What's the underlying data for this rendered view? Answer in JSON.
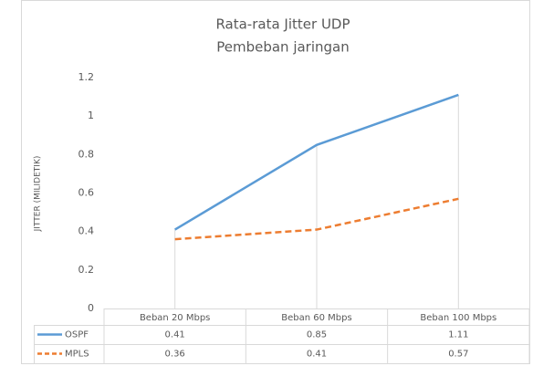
{
  "chart_data": {
    "type": "line",
    "title": "Rata-rata Jitter UDP",
    "subtitle": "Pembeban jaringan",
    "ylabel": "JITTER (MILIDETIK)",
    "categories": [
      "Beban 20 Mbps",
      "Beban 60 Mbps",
      "Beban 100 Mbps"
    ],
    "series": [
      {
        "name": "OSPF",
        "color": "#5b9bd5",
        "dashed": false,
        "values": [
          0.41,
          0.85,
          1.11
        ]
      },
      {
        "name": "MPLS",
        "color": "#ed7d31",
        "dashed": true,
        "values": [
          0.36,
          0.41,
          0.57
        ]
      }
    ],
    "ylim": [
      0,
      1.2
    ],
    "yticks": [
      0,
      0.2,
      0.4,
      0.6,
      0.8,
      1,
      1.2
    ],
    "data_table": true
  }
}
